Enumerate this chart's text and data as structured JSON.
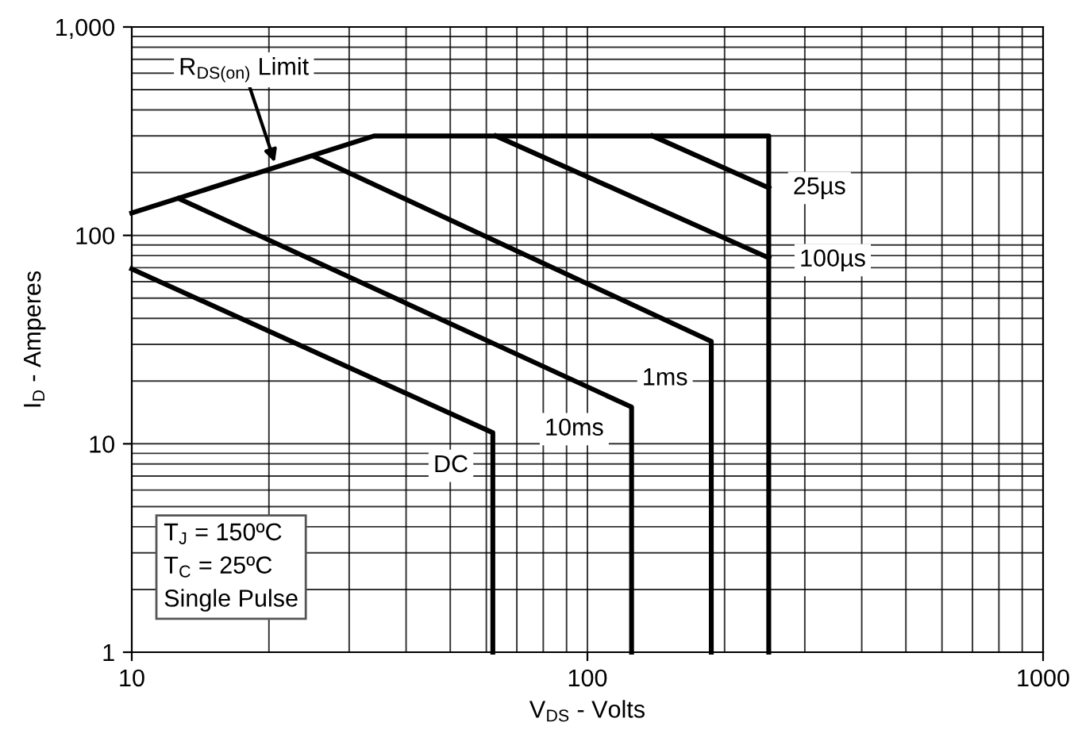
{
  "chart_data": {
    "type": "line",
    "xlabel": "V$_{DS}$ - Volts",
    "ylabel": "I$_{D}$ - Amperes",
    "log": "xy",
    "xlim": [
      10,
      1000
    ],
    "ylim": [
      1,
      1000
    ],
    "xticks": [
      10,
      100,
      1000
    ],
    "yticks": [
      1,
      10,
      100,
      {
        "value": 1000,
        "label": "1,000"
      }
    ],
    "grid": true,
    "marker": "none",
    "line_style": "solid",
    "series": [
      {
        "color": "#000000",
        "x": [
          10,
          34,
          250,
          250
        ],
        "values": [
          128,
          300,
          300,
          1
        ]
      },
      {
        "color": "#000000",
        "x": [
          139,
          250
        ],
        "values": [
          300,
          169
        ]
      },
      {
        "color": "#000000",
        "x": [
          63,
          250
        ],
        "values": [
          300,
          78
        ]
      },
      {
        "color": "#000000",
        "x": [
          25,
          187,
          187
        ],
        "values": [
          240,
          31,
          1
        ]
      },
      {
        "color": "#000000",
        "x": [
          12.7,
          125,
          125
        ],
        "values": [
          150,
          15,
          1
        ]
      },
      {
        "color": "#000000",
        "x": [
          10,
          62,
          62
        ],
        "values": [
          69,
          11.3,
          1
        ]
      }
    ],
    "annotations": [
      {
        "text": "R$_{DS(on)}$ Limit",
        "x": 20.6,
        "y": 224
      },
      {
        "text": "25µs",
        "x": 250,
        "y": 169
      },
      {
        "text": "100µs",
        "x": 250,
        "y": 78
      },
      {
        "text": "1ms",
        "x": 187,
        "y": 31
      },
      {
        "text": "10ms",
        "x": 125,
        "y": 15
      },
      {
        "text": "DC",
        "x": 62,
        "y": 11.3
      },
      "T$_{J}$ = 150ºC\nT$_{C}$ = 25ºC\nSingle Pulse"
    ]
  }
}
